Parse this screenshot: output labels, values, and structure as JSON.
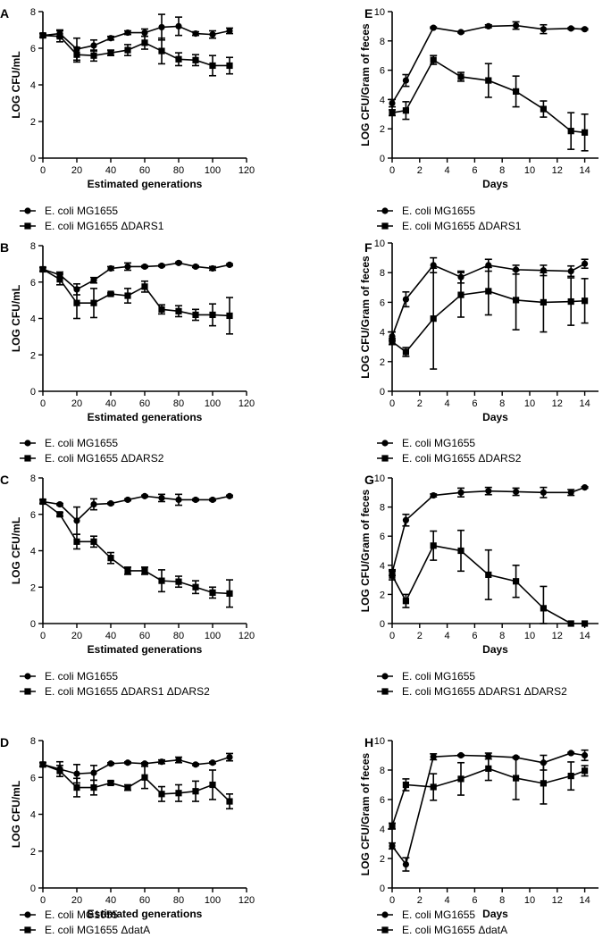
{
  "chart_data": [
    {
      "type": "line",
      "panel": "A",
      "xlabel": "Estimated generations",
      "ylabel": "LOG CFU/mL",
      "xlim": [
        0,
        120
      ],
      "ylim": [
        0,
        8
      ],
      "xticks": [
        0,
        20,
        40,
        60,
        80,
        100,
        120
      ],
      "yticks": [
        0,
        2,
        4,
        6,
        8
      ],
      "legend": "below",
      "series": [
        {
          "name": "E. coli MG1655",
          "marker": "circle",
          "x": [
            0,
            10,
            20,
            30,
            40,
            50,
            60,
            70,
            80,
            90,
            100,
            110
          ],
          "y": [
            6.7,
            6.8,
            5.95,
            6.15,
            6.55,
            6.85,
            6.85,
            7.15,
            7.2,
            6.8,
            6.75,
            6.95
          ],
          "err": [
            0.1,
            0.2,
            0.6,
            0.3,
            0.1,
            0.1,
            0.2,
            0.7,
            0.5,
            0.1,
            0.2,
            0.15
          ]
        },
        {
          "name": "E. coli MG1655 ΔDARS1",
          "marker": "square",
          "x": [
            0,
            10,
            20,
            30,
            40,
            50,
            60,
            70,
            80,
            90,
            100,
            110
          ],
          "y": [
            6.7,
            6.65,
            5.65,
            5.6,
            5.75,
            5.9,
            6.3,
            5.85,
            5.4,
            5.35,
            5.05,
            5.05
          ],
          "err": [
            0.1,
            0.3,
            0.4,
            0.3,
            0.15,
            0.3,
            0.35,
            0.7,
            0.35,
            0.3,
            0.55,
            0.45
          ]
        }
      ]
    },
    {
      "type": "line",
      "panel": "E",
      "xlabel": "Days",
      "ylabel": "LOG CFU/Gram of feces",
      "xlim": [
        0,
        15
      ],
      "ylim": [
        0,
        10
      ],
      "xticks": [
        0,
        2,
        4,
        6,
        8,
        10,
        12,
        14
      ],
      "yticks": [
        0,
        2,
        4,
        6,
        8,
        10
      ],
      "legend": "below",
      "series": [
        {
          "name": "E. coli MG1655",
          "marker": "circle",
          "x": [
            0,
            1,
            3,
            5,
            7,
            9,
            11,
            13,
            14
          ],
          "y": [
            3.75,
            5.3,
            8.9,
            8.6,
            9.0,
            9.05,
            8.8,
            8.85,
            8.8
          ],
          "err": [
            0.25,
            0.4,
            0.05,
            0.05,
            0.1,
            0.25,
            0.3,
            0.05,
            0.05
          ]
        },
        {
          "name": "E. coli MG1655 ΔDARS1",
          "marker": "square",
          "x": [
            0,
            1,
            3,
            5,
            7,
            9,
            11,
            13,
            14
          ],
          "y": [
            3.1,
            3.25,
            6.7,
            5.55,
            5.3,
            4.55,
            3.35,
            1.85,
            1.75
          ],
          "err": [
            0.2,
            0.6,
            0.3,
            0.3,
            1.15,
            1.05,
            0.55,
            1.25,
            1.25
          ]
        }
      ]
    },
    {
      "type": "line",
      "panel": "B",
      "xlabel": "Estimated generations",
      "ylabel": "LOG CFU/mL",
      "xlim": [
        0,
        120
      ],
      "ylim": [
        0,
        8
      ],
      "xticks": [
        0,
        20,
        40,
        60,
        80,
        100,
        120
      ],
      "yticks": [
        0,
        2,
        4,
        6,
        8
      ],
      "legend": "below",
      "series": [
        {
          "name": "E. coli MG1655",
          "marker": "circle",
          "x": [
            0,
            10,
            20,
            30,
            40,
            50,
            60,
            70,
            80,
            90,
            100,
            110
          ],
          "y": [
            6.7,
            6.4,
            5.6,
            6.1,
            6.75,
            6.85,
            6.85,
            6.9,
            7.05,
            6.85,
            6.75,
            6.95
          ],
          "err": [
            0.1,
            0.15,
            0.3,
            0.15,
            0.1,
            0.2,
            0.05,
            0.05,
            0.05,
            0.05,
            0.1,
            0.05
          ]
        },
        {
          "name": "E. coli MG1655 ΔDARS2",
          "marker": "square",
          "x": [
            0,
            10,
            20,
            30,
            40,
            50,
            60,
            70,
            80,
            90,
            100,
            110
          ],
          "y": [
            6.7,
            6.15,
            4.85,
            4.85,
            5.35,
            5.25,
            5.75,
            4.5,
            4.4,
            4.2,
            4.2,
            4.15
          ],
          "err": [
            0.1,
            0.3,
            0.85,
            0.8,
            0.05,
            0.4,
            0.3,
            0.25,
            0.3,
            0.3,
            0.6,
            1.0
          ]
        }
      ]
    },
    {
      "type": "line",
      "panel": "F",
      "xlabel": "Days",
      "ylabel": "LOG CFU/Gram of feces",
      "xlim": [
        0,
        15
      ],
      "ylim": [
        0,
        10
      ],
      "xticks": [
        0,
        2,
        4,
        6,
        8,
        10,
        12,
        14
      ],
      "yticks": [
        0,
        2,
        4,
        6,
        8,
        10
      ],
      "legend": "below",
      "series": [
        {
          "name": "E. coli MG1655",
          "marker": "circle",
          "x": [
            0,
            1,
            3,
            5,
            7,
            9,
            11,
            13,
            14
          ],
          "y": [
            3.7,
            6.2,
            8.5,
            7.7,
            8.5,
            8.2,
            8.15,
            8.1,
            8.6
          ],
          "err": [
            0.3,
            0.5,
            0.5,
            0.4,
            0.4,
            0.3,
            0.35,
            0.35,
            0.3
          ]
        },
        {
          "name": "E. coli MG1655 ΔDARS2",
          "marker": "square",
          "x": [
            0,
            1,
            3,
            5,
            7,
            9,
            11,
            13,
            14
          ],
          "y": [
            3.35,
            2.65,
            4.9,
            6.5,
            6.75,
            6.15,
            6.0,
            6.05,
            6.1
          ],
          "err": [
            0.2,
            0.3,
            3.4,
            1.5,
            1.6,
            2.0,
            2.0,
            1.6,
            1.5
          ]
        }
      ]
    },
    {
      "type": "line",
      "panel": "C",
      "xlabel": "Estimated generations",
      "ylabel": "LOG CFU/mL",
      "xlim": [
        0,
        120
      ],
      "ylim": [
        0,
        8
      ],
      "xticks": [
        0,
        20,
        40,
        60,
        80,
        100,
        120
      ],
      "yticks": [
        0,
        2,
        4,
        6,
        8
      ],
      "legend": "below",
      "series": [
        {
          "name": "E. coli MG1655",
          "marker": "circle",
          "x": [
            0,
            10,
            20,
            30,
            40,
            50,
            60,
            70,
            80,
            90,
            100,
            110
          ],
          "y": [
            6.7,
            6.55,
            5.65,
            6.55,
            6.6,
            6.8,
            7.0,
            6.9,
            6.8,
            6.8,
            6.8,
            7.0
          ],
          "err": [
            0.1,
            0.05,
            0.75,
            0.3,
            0.05,
            0.05,
            0.05,
            0.2,
            0.3,
            0.05,
            0.05,
            0.05
          ]
        },
        {
          "name": "E. coli MG1655 ΔDARS1 ΔDARS2",
          "marker": "square",
          "x": [
            0,
            10,
            20,
            30,
            40,
            50,
            60,
            70,
            80,
            90,
            100,
            110
          ],
          "y": [
            6.7,
            6.0,
            4.5,
            4.5,
            3.6,
            2.9,
            2.9,
            2.35,
            2.3,
            2.0,
            1.7,
            1.65
          ],
          "err": [
            0.1,
            0.1,
            0.4,
            0.3,
            0.3,
            0.2,
            0.2,
            0.6,
            0.3,
            0.35,
            0.3,
            0.75
          ]
        }
      ]
    },
    {
      "type": "line",
      "panel": "G",
      "xlabel": "Days",
      "ylabel": "LOG CFU/Gram of feces",
      "xlim": [
        0,
        15
      ],
      "ylim": [
        0,
        10
      ],
      "xticks": [
        0,
        2,
        4,
        6,
        8,
        10,
        12,
        14
      ],
      "yticks": [
        0,
        2,
        4,
        6,
        8,
        10
      ],
      "legend": "below",
      "series": [
        {
          "name": "E. coli MG1655",
          "marker": "circle",
          "x": [
            0,
            1,
            3,
            5,
            7,
            9,
            11,
            13,
            14
          ],
          "y": [
            3.5,
            7.1,
            8.8,
            9.0,
            9.1,
            9.05,
            9.0,
            9.0,
            9.35
          ],
          "err": [
            0.2,
            0.4,
            0.1,
            0.3,
            0.25,
            0.25,
            0.35,
            0.2,
            0.05
          ]
        },
        {
          "name": "E. coli MG1655 ΔDARS1 ΔDARS2",
          "marker": "square",
          "x": [
            0,
            1,
            3,
            5,
            7,
            9,
            11,
            13,
            14
          ],
          "y": [
            3.3,
            1.55,
            5.35,
            5.0,
            3.35,
            2.9,
            1.05,
            0.0,
            0.0
          ],
          "err": [
            0.3,
            0.45,
            1.0,
            1.4,
            1.7,
            1.1,
            1.5,
            0.0,
            0.0
          ]
        }
      ]
    },
    {
      "type": "line",
      "panel": "D",
      "xlabel": "Estimated generations",
      "ylabel": "LOG CFU/mL",
      "xlim": [
        0,
        120
      ],
      "ylim": [
        0,
        8
      ],
      "xticks": [
        0,
        20,
        40,
        60,
        80,
        100,
        120
      ],
      "yticks": [
        0,
        2,
        4,
        6,
        8
      ],
      "legend": "below",
      "series": [
        {
          "name": "E. coli MG1655",
          "marker": "circle",
          "x": [
            0,
            10,
            20,
            30,
            40,
            50,
            60,
            70,
            80,
            90,
            100,
            110
          ],
          "y": [
            6.7,
            6.45,
            6.2,
            6.25,
            6.75,
            6.8,
            6.75,
            6.85,
            6.95,
            6.7,
            6.8,
            7.1
          ],
          "err": [
            0.1,
            0.4,
            0.5,
            0.4,
            0.05,
            0.05,
            0.05,
            0.1,
            0.15,
            0.05,
            0.05,
            0.2
          ]
        },
        {
          "name": "E. coli MG1655 ΔdatA",
          "marker": "square",
          "x": [
            0,
            10,
            20,
            30,
            40,
            50,
            60,
            70,
            80,
            90,
            100,
            110
          ],
          "y": [
            6.7,
            6.35,
            5.45,
            5.45,
            5.7,
            5.45,
            6.0,
            5.1,
            5.15,
            5.25,
            5.6,
            4.7
          ],
          "err": [
            0.1,
            0.3,
            0.5,
            0.4,
            0.1,
            0.15,
            0.6,
            0.4,
            0.45,
            0.55,
            0.8,
            0.4
          ]
        }
      ]
    },
    {
      "type": "line",
      "panel": "H",
      "xlabel": "Days",
      "ylabel": "LOG CFU/Gram of feces",
      "xlim": [
        0,
        15
      ],
      "ylim": [
        0,
        10
      ],
      "xticks": [
        0,
        2,
        4,
        6,
        8,
        10,
        12,
        14
      ],
      "yticks": [
        0,
        2,
        4,
        6,
        8,
        10
      ],
      "legend": "below",
      "series": [
        {
          "name": "E. coli MG1655",
          "marker": "circle",
          "x": [
            0,
            1,
            3,
            5,
            7,
            9,
            11,
            13,
            14
          ],
          "y": [
            2.85,
            1.6,
            8.9,
            9.0,
            8.95,
            8.85,
            8.5,
            9.15,
            9.0
          ],
          "err": [
            0.2,
            0.45,
            0.2,
            0.05,
            0.2,
            0.05,
            0.5,
            0.05,
            0.35
          ]
        },
        {
          "name": "E. coli MG1655 ΔdatA",
          "marker": "square",
          "x": [
            0,
            1,
            3,
            5,
            7,
            9,
            11,
            13,
            14
          ],
          "y": [
            4.2,
            7.0,
            6.85,
            7.4,
            8.1,
            7.45,
            7.1,
            7.6,
            7.95
          ],
          "err": [
            0.2,
            0.4,
            0.9,
            1.1,
            0.8,
            1.45,
            1.4,
            0.95,
            0.35
          ]
        }
      ]
    }
  ]
}
